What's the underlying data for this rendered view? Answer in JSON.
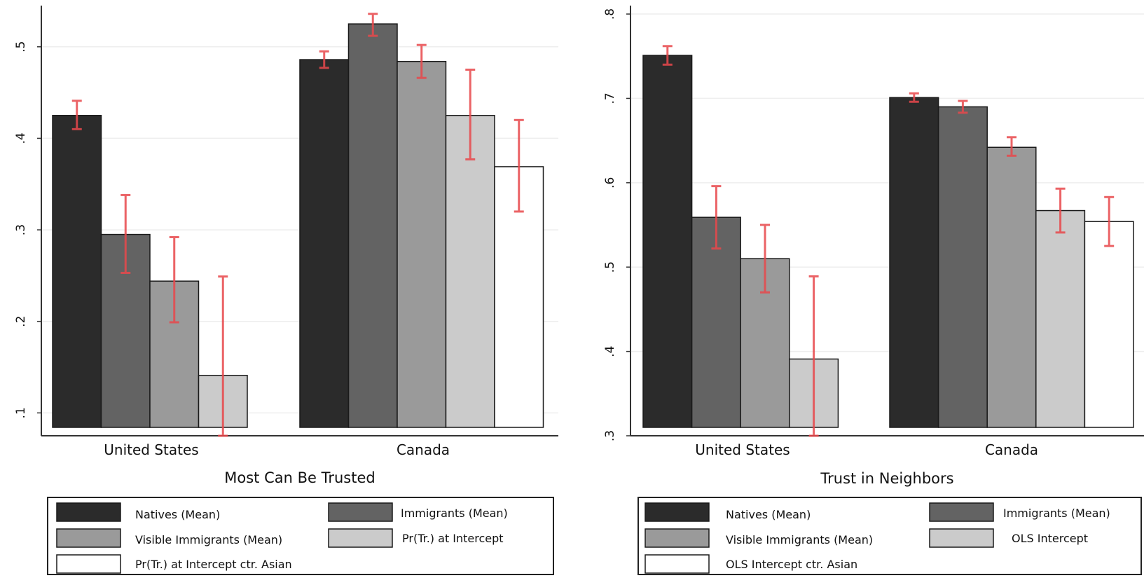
{
  "colors": {
    "series": [
      "#2b2b2b",
      "#636363",
      "#9a9a9a",
      "#cbcbcb",
      "#ffffff"
    ],
    "error_bar": "#e8484c",
    "grid": "#eeeeee",
    "axis": "#333333",
    "bar_edge": "#1a1a1a"
  },
  "chart_data": [
    {
      "type": "bar",
      "xlabel": "Most Can Be Trusted",
      "ylabel": "",
      "ylim": [
        0.075,
        0.545
      ],
      "yticks": [
        0.1,
        0.2,
        0.3,
        0.4,
        0.5
      ],
      "ytick_labels": [
        ".1",
        ".2",
        ".3",
        ".4",
        ".5"
      ],
      "grid": true,
      "categories": [
        "United States",
        "Canada"
      ],
      "series": [
        {
          "name": "Natives (Mean)",
          "values": [
            0.425,
            0.486
          ],
          "errors": [
            [
              0.41,
              0.441
            ],
            [
              0.477,
              0.495
            ]
          ]
        },
        {
          "name": "Immigrants (Mean)",
          "values": [
            0.295,
            0.525
          ],
          "errors": [
            [
              0.253,
              0.338
            ],
            [
              0.512,
              0.536
            ]
          ]
        },
        {
          "name": "Visible Immigrants (Mean)",
          "values": [
            0.244,
            0.484
          ],
          "errors": [
            [
              0.199,
              0.292
            ],
            [
              0.466,
              0.502
            ]
          ]
        },
        {
          "name": "Pr(Tr.) at Intercept",
          "values": [
            0.141,
            0.425
          ],
          "errors": [
            [
              0.075,
              0.249
            ],
            [
              0.377,
              0.475
            ]
          ]
        },
        {
          "name": "Pr(Tr.) at Intercept ctr. Asian",
          "values": [
            null,
            0.369
          ],
          "errors": [
            null,
            [
              0.32,
              0.42
            ]
          ]
        }
      ],
      "legend": {
        "placement": "bottom",
        "entries": [
          "Natives (Mean)",
          "Immigrants (Mean)",
          "Visible Immigrants (Mean)",
          "Pr(Tr.) at Intercept",
          "Pr(Tr.) at Intercept ctr. Asian"
        ]
      }
    },
    {
      "type": "bar",
      "xlabel": "Trust in Neighbors",
      "ylabel": "",
      "ylim": [
        0.3,
        0.81
      ],
      "yticks": [
        0.3,
        0.4,
        0.5,
        0.6,
        0.7,
        0.8
      ],
      "ytick_labels": [
        ".3",
        ".4",
        ".5",
        ".6",
        ".7",
        ".8"
      ],
      "grid": true,
      "categories": [
        "United  States",
        "Canada"
      ],
      "series": [
        {
          "name": "Natives (Mean)",
          "values": [
            0.751,
            0.701
          ],
          "errors": [
            [
              0.74,
              0.762
            ],
            [
              0.696,
              0.706
            ]
          ]
        },
        {
          "name": "Immigrants (Mean)",
          "values": [
            0.559,
            0.69
          ],
          "errors": [
            [
              0.522,
              0.596
            ],
            [
              0.683,
              0.697
            ]
          ]
        },
        {
          "name": "Visible Immigrants (Mean)",
          "values": [
            0.51,
            0.642
          ],
          "errors": [
            [
              0.47,
              0.55
            ],
            [
              0.632,
              0.654
            ]
          ]
        },
        {
          "name": "OLS Intercept",
          "values": [
            0.391,
            0.567
          ],
          "errors": [
            [
              0.3,
              0.489
            ],
            [
              0.541,
              0.593
            ]
          ]
        },
        {
          "name": "OLS Intercept ctr. Asian",
          "values": [
            null,
            0.554
          ],
          "errors": [
            null,
            [
              0.525,
              0.583
            ]
          ]
        }
      ],
      "legend": {
        "placement": "bottom",
        "entries": [
          "Natives (Mean)",
          "Immigrants (Mean)",
          "Visible Immigrants (Mean)",
          "OLS Intercept",
          "OLS Intercept ctr. Asian"
        ]
      }
    }
  ]
}
